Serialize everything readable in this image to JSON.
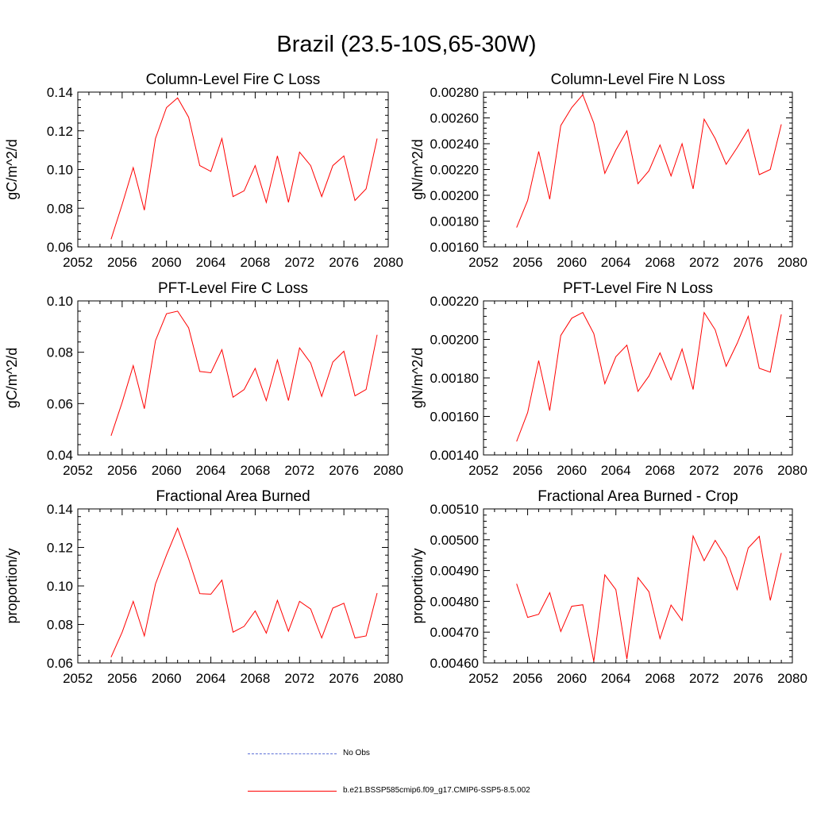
{
  "title": "Brazil (23.5-10S,65-30W)",
  "colors": {
    "model": "#ff0000",
    "obs": "#5b6fd6",
    "axis": "#000000"
  },
  "legend": {
    "obs_label": "No Obs",
    "model_label": "b.e21.BSSP585cmip6.f09_g17.CMIP6-SSP5-8.5.002"
  },
  "chart_data": [
    {
      "type": "line",
      "title": "Column-Level Fire C Loss",
      "ylabel": "gC/m^2/d",
      "xlim": [
        2052,
        2080
      ],
      "ylim": [
        0.06,
        0.14
      ],
      "xticks": [
        2052,
        2056,
        2060,
        2064,
        2068,
        2072,
        2076,
        2080
      ],
      "yticks": [
        "0.06",
        "0.08",
        "0.10",
        "0.12",
        "0.14"
      ],
      "x": [
        2055,
        2056,
        2057,
        2058,
        2059,
        2060,
        2061,
        2062,
        2063,
        2064,
        2065,
        2066,
        2067,
        2068,
        2069,
        2070,
        2071,
        2072,
        2073,
        2074,
        2075,
        2076,
        2077,
        2078,
        2079
      ],
      "values": [
        0.064,
        0.082,
        0.101,
        0.079,
        0.116,
        0.132,
        0.137,
        0.127,
        0.102,
        0.099,
        0.116,
        0.086,
        0.089,
        0.102,
        0.083,
        0.107,
        0.083,
        0.109,
        0.102,
        0.086,
        0.102,
        0.107,
        0.084,
        0.09,
        0.116
      ]
    },
    {
      "type": "line",
      "title": "Column-Level Fire N Loss",
      "ylabel": "gN/m^2/d",
      "xlim": [
        2052,
        2080
      ],
      "ylim": [
        0.0016,
        0.0028
      ],
      "xticks": [
        2052,
        2056,
        2060,
        2064,
        2068,
        2072,
        2076,
        2080
      ],
      "yticks": [
        "0.00160",
        "0.00180",
        "0.00200",
        "0.00220",
        "0.00240",
        "0.00260",
        "0.00280"
      ],
      "x": [
        2055,
        2056,
        2057,
        2058,
        2059,
        2060,
        2061,
        2062,
        2063,
        2064,
        2065,
        2066,
        2067,
        2068,
        2069,
        2070,
        2071,
        2072,
        2073,
        2074,
        2075,
        2076,
        2077,
        2078,
        2079
      ],
      "values": [
        0.00175,
        0.00196,
        0.00234,
        0.00197,
        0.00254,
        0.00268,
        0.00278,
        0.00256,
        0.00217,
        0.00235,
        0.0025,
        0.00209,
        0.00219,
        0.00239,
        0.00215,
        0.0024,
        0.00205,
        0.00259,
        0.00244,
        0.00224,
        0.00237,
        0.00251,
        0.00216,
        0.0022,
        0.00255
      ]
    },
    {
      "type": "line",
      "title": "PFT-Level Fire C Loss",
      "ylabel": "gC/m^2/d",
      "xlim": [
        2052,
        2080
      ],
      "ylim": [
        0.04,
        0.1
      ],
      "xticks": [
        2052,
        2056,
        2060,
        2064,
        2068,
        2072,
        2076,
        2080
      ],
      "yticks": [
        "0.04",
        "0.06",
        "0.08",
        "0.10"
      ],
      "x": [
        2055,
        2056,
        2057,
        2058,
        2059,
        2060,
        2061,
        2062,
        2063,
        2064,
        2065,
        2066,
        2067,
        2068,
        2069,
        2070,
        2071,
        2072,
        2073,
        2074,
        2075,
        2076,
        2077,
        2078,
        2079
      ],
      "values": [
        0.0475,
        0.0605,
        0.0748,
        0.058,
        0.0845,
        0.095,
        0.096,
        0.0895,
        0.0725,
        0.072,
        0.081,
        0.0625,
        0.0655,
        0.0737,
        0.0612,
        0.077,
        0.0612,
        0.0817,
        0.0758,
        0.0628,
        0.0762,
        0.0804,
        0.063,
        0.0655,
        0.0868
      ]
    },
    {
      "type": "line",
      "title": "PFT-Level Fire N Loss",
      "ylabel": "gN/m^2/d",
      "xlim": [
        2052,
        2080
      ],
      "ylim": [
        0.0014,
        0.0022
      ],
      "xticks": [
        2052,
        2056,
        2060,
        2064,
        2068,
        2072,
        2076,
        2080
      ],
      "yticks": [
        "0.00140",
        "0.00160",
        "0.00180",
        "0.00200",
        "0.00220"
      ],
      "x": [
        2055,
        2056,
        2057,
        2058,
        2059,
        2060,
        2061,
        2062,
        2063,
        2064,
        2065,
        2066,
        2067,
        2068,
        2069,
        2070,
        2071,
        2072,
        2073,
        2074,
        2075,
        2076,
        2077,
        2078,
        2079
      ],
      "values": [
        0.00147,
        0.00162,
        0.00189,
        0.00163,
        0.00202,
        0.00211,
        0.00214,
        0.00203,
        0.00177,
        0.00191,
        0.00197,
        0.00173,
        0.00181,
        0.00193,
        0.00179,
        0.00195,
        0.00174,
        0.00214,
        0.00205,
        0.00186,
        0.00198,
        0.00212,
        0.00185,
        0.00183,
        0.00213
      ]
    },
    {
      "type": "line",
      "title": "Fractional Area Burned",
      "ylabel": "proportion/y",
      "xlim": [
        2052,
        2080
      ],
      "ylim": [
        0.06,
        0.14
      ],
      "xticks": [
        2052,
        2056,
        2060,
        2064,
        2068,
        2072,
        2076,
        2080
      ],
      "yticks": [
        "0.06",
        "0.08",
        "0.10",
        "0.12",
        "0.14"
      ],
      "x": [
        2055,
        2056,
        2057,
        2058,
        2059,
        2060,
        2061,
        2062,
        2063,
        2064,
        2065,
        2066,
        2067,
        2068,
        2069,
        2070,
        2071,
        2072,
        2073,
        2074,
        2075,
        2076,
        2077,
        2078,
        2079
      ],
      "values": [
        0.063,
        0.076,
        0.092,
        0.074,
        0.101,
        0.116,
        0.13,
        0.114,
        0.096,
        0.0957,
        0.103,
        0.076,
        0.079,
        0.087,
        0.0755,
        0.0925,
        0.0765,
        0.092,
        0.088,
        0.073,
        0.0885,
        0.091,
        0.073,
        0.074,
        0.0963
      ]
    },
    {
      "type": "line",
      "title": "Fractional Area Burned - Crop",
      "ylabel": "proportion/y",
      "xlim": [
        2052,
        2080
      ],
      "ylim": [
        0.0046,
        0.0051
      ],
      "xticks": [
        2052,
        2056,
        2060,
        2064,
        2068,
        2072,
        2076,
        2080
      ],
      "yticks": [
        "0.00460",
        "0.00470",
        "0.00480",
        "0.00490",
        "0.00500",
        "0.00510"
      ],
      "x": [
        2055,
        2056,
        2057,
        2058,
        2059,
        2060,
        2061,
        2062,
        2063,
        2064,
        2065,
        2066,
        2067,
        2068,
        2069,
        2070,
        2071,
        2072,
        2073,
        2074,
        2075,
        2076,
        2077,
        2078,
        2079
      ],
      "values": [
        0.004857,
        0.004748,
        0.004758,
        0.004828,
        0.004702,
        0.004784,
        0.004789,
        0.004605,
        0.004886,
        0.004838,
        0.004613,
        0.004877,
        0.004831,
        0.004679,
        0.004788,
        0.004738,
        0.005012,
        0.004932,
        0.004998,
        0.004941,
        0.004838,
        0.004973,
        0.005011,
        0.004803,
        0.004957
      ]
    }
  ]
}
